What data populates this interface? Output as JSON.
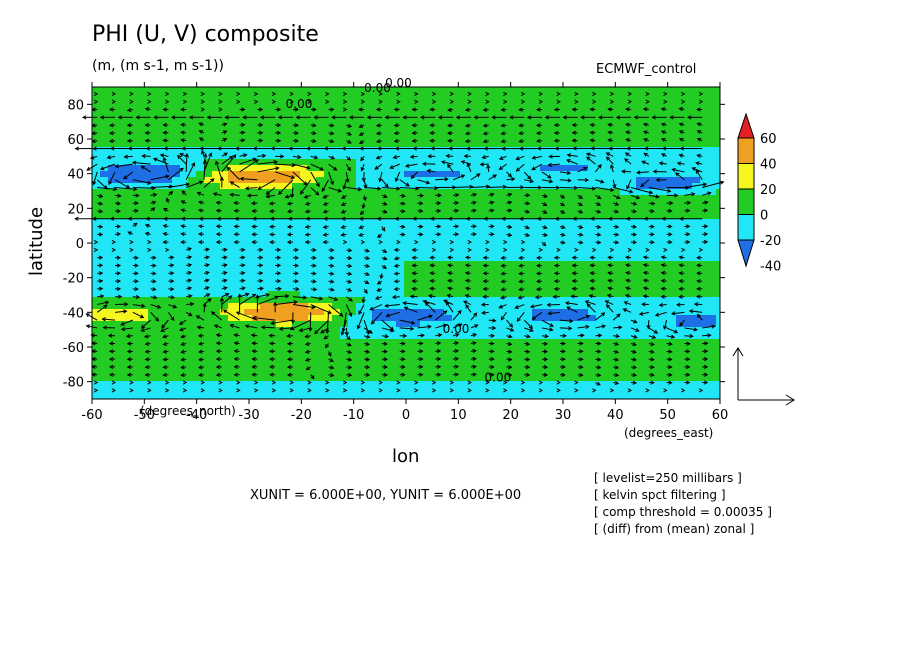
{
  "chart_data": {
    "type": "heatmap",
    "title": "PHI (U, V) composite",
    "units_line": "(m, (m s-1, m s-1))",
    "dataset_label": "ECMWF_control",
    "xlabel": "lon",
    "ylabel": "latitude",
    "x_unit_label": "(degrees_east)",
    "y_unit_label": "(degrees_north)",
    "xlim": [
      -60,
      60
    ],
    "ylim": [
      -90,
      90
    ],
    "x_ticks": [
      -60,
      -50,
      -40,
      -30,
      -20,
      -10,
      0,
      10,
      20,
      30,
      40,
      50,
      60
    ],
    "y_ticks": [
      80,
      60,
      40,
      20,
      0,
      -20,
      -40,
      -60,
      -80
    ],
    "colorbar": {
      "levels": [
        -40,
        -20,
        0,
        20,
        40,
        60
      ],
      "colors": [
        "#1e6fe6",
        "#20e6f5",
        "#22cc22",
        "#f5f520",
        "#f0a020",
        "#e62020"
      ]
    },
    "contour_labels": [
      "0.00",
      "0.00",
      "0.00",
      "0.00",
      "0.00"
    ],
    "vector_scale_note": "XUNIT = 6.000E+00, YUNIT = 6.000E+00",
    "notes": [
      "[ levelist=250 millibars ]",
      "[ kelvin spct filtering ]",
      "[ comp threshold = 0.00035 ]",
      "[ (diff) from (mean) zonal ]"
    ],
    "field_centers": [
      {
        "lon": -50,
        "lat": 40,
        "value": -45
      },
      {
        "lon": -25,
        "lat": 40,
        "value": 35
      },
      {
        "lon": -30,
        "lat": 37,
        "value": 42
      },
      {
        "lon": 5,
        "lat": 40,
        "value": -25
      },
      {
        "lon": 30,
        "lat": 43,
        "value": -25
      },
      {
        "lon": 50,
        "lat": 35,
        "value": -30
      },
      {
        "lon": -55,
        "lat": -42,
        "value": 30
      },
      {
        "lon": -25,
        "lat": -40,
        "value": 35
      },
      {
        "lon": -22,
        "lat": -40,
        "value": 40
      },
      {
        "lon": 0,
        "lat": -42,
        "value": -40
      },
      {
        "lon": 30,
        "lat": -42,
        "value": -30
      },
      {
        "lon": 55,
        "lat": -45,
        "value": -25
      }
    ]
  }
}
